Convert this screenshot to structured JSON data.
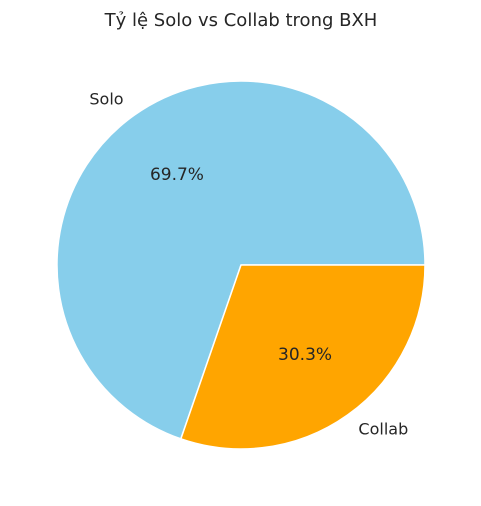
{
  "chart_data": {
    "type": "pie",
    "title": "Tỷ lệ Solo vs Collab trong BXH",
    "labels": [
      "Solo",
      "Collab"
    ],
    "values": [
      69.7,
      30.3
    ],
    "value_labels": [
      "69.7%",
      "30.3%"
    ],
    "colors": [
      "#87ceeb",
      "#ffa500"
    ],
    "start_angle_deg": 0,
    "direction": "counterclockwise",
    "legend": "none"
  }
}
